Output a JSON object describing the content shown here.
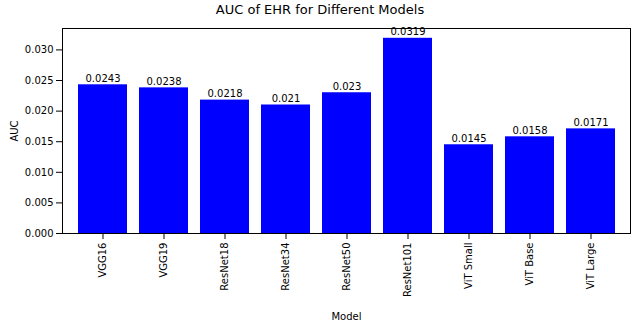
{
  "chart_data": {
    "type": "bar",
    "title": "AUC of EHR for Different Models",
    "x_label": "Model",
    "y_label": "AUC",
    "categories": [
      "VGG16",
      "VGG19",
      "ResNet18",
      "ResNet34",
      "ResNet50",
      "ResNet101",
      "ViT Small",
      "ViT Base",
      "ViT Large"
    ],
    "values": [
      0.0243,
      0.0238,
      0.0218,
      0.021,
      0.023,
      0.0319,
      0.0145,
      0.0158,
      0.0171
    ],
    "color": "#0000ff",
    "ylim": [
      0,
      0.0335
    ],
    "yticks": [
      {
        "value": 0,
        "label": "0.000"
      },
      {
        "value": 0.005,
        "label": "0.005"
      },
      {
        "value": 0.01,
        "label": "0.010"
      },
      {
        "value": 0.015,
        "label": "0.015"
      },
      {
        "value": 0.02,
        "label": "0.020"
      },
      {
        "value": 0.025,
        "label": "0.025"
      },
      {
        "value": 0.03,
        "label": "0.030"
      }
    ],
    "data_labels": true,
    "grid": false
  }
}
